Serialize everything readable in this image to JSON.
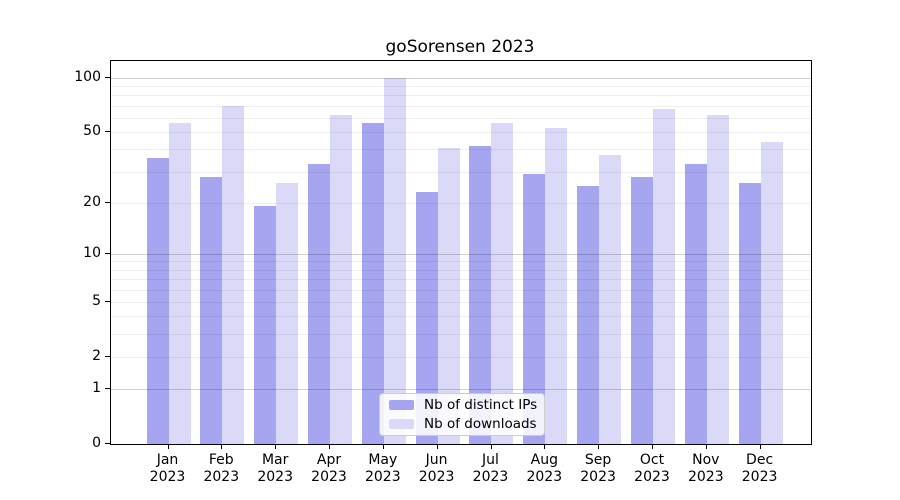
{
  "title": "goSorensen 2023",
  "chart_data": {
    "type": "bar",
    "title": "goSorensen 2023",
    "xlabel": "",
    "ylabel": "",
    "year_label": "2023",
    "categories": [
      "Jan",
      "Feb",
      "Mar",
      "Apr",
      "May",
      "Jun",
      "Jul",
      "Aug",
      "Sep",
      "Oct",
      "Nov",
      "Dec"
    ],
    "series": [
      {
        "name": "Nb of distinct IPs",
        "color": "#a5a5f0",
        "values": [
          36,
          28,
          19,
          33,
          56,
          23,
          42,
          29,
          25,
          28,
          33,
          26
        ]
      },
      {
        "name": "Nb of downloads",
        "color": "#dadaf8",
        "values": [
          56,
          70,
          26,
          62,
          100,
          41,
          56,
          53,
          37,
          67,
          62,
          44
        ]
      }
    ],
    "y_scale": "log10(x+1)",
    "ylim": [
      0,
      124
    ],
    "y_ticks": [
      0,
      1,
      2,
      5,
      10,
      20,
      50,
      100
    ],
    "y_major_gridlines": [
      1,
      10,
      100
    ],
    "y_minor_gridlines": [
      2,
      3,
      4,
      5,
      6,
      7,
      8,
      9,
      20,
      30,
      40,
      50,
      60,
      70,
      80,
      90
    ],
    "grid": "on",
    "legend_position": "lower center"
  }
}
